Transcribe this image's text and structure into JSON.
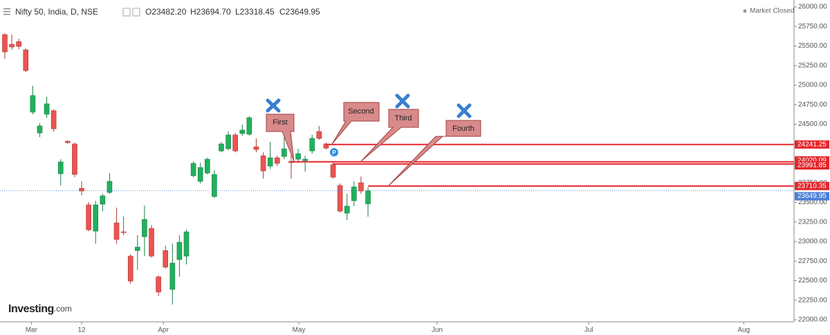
{
  "header": {
    "title": "Nifty 50, India, D, NSE",
    "ohlc": [
      "O23482.20",
      "H23694.70",
      "L23318.45",
      "C23649.95"
    ],
    "status": "Market Closed",
    "logo": "Investing",
    "logo_suffix": ".com"
  },
  "chart_data": {
    "type": "candlestick",
    "open": [
      25646,
      25522,
      25557,
      25451,
      24655,
      24389,
      24628,
      24673,
      23867,
      24283,
      24248,
      23681,
      23469,
      23133,
      23478,
      23628,
      23239,
      23124,
      22814,
      22885,
      23062,
      23168,
      22549,
      22885,
      22389,
      22770,
      22814,
      23841,
      23770,
      23876,
      23575,
      24159,
      24186,
      24363,
      24381,
      24372,
      24212,
      24097,
      23965,
      24071,
      24088,
      24026,
      24053,
      24035,
      24159,
      24407,
      24248,
      23982,
      23717,
      23363,
      23522,
      23752,
      23482.2
    ],
    "high": [
      25664,
      25646,
      25593,
      25469,
      24991,
      24513,
      24850,
      24690,
      24053,
      24292,
      24265,
      23770,
      23504,
      23522,
      23611,
      23876,
      23434,
      23319,
      22840,
      23080,
      23460,
      23212,
      22566,
      22947,
      22973,
      23080,
      23150,
      24026,
      24009,
      24071,
      23911,
      24274,
      24407,
      24389,
      24496,
      24602,
      24318,
      24141,
      24274,
      24097,
      24336,
      24363,
      24186,
      24097,
      24363,
      24478,
      24265,
      24009,
      23743,
      23611,
      23770,
      23832,
      23694.7
    ],
    "low": [
      25336,
      25451,
      25460,
      25168,
      24628,
      24336,
      24584,
      24407,
      23717,
      24248,
      23823,
      23593,
      23133,
      22973,
      23390,
      23611,
      22973,
      23080,
      22460,
      22637,
      22814,
      22796,
      22301,
      22655,
      22195,
      22549,
      22708,
      23823,
      23743,
      23858,
      23557,
      24141,
      24168,
      24141,
      24354,
      24354,
      24141,
      23806,
      23929,
      23965,
      24053,
      23806,
      24009,
      23894,
      24124,
      24301,
      24177,
      23806,
      23372,
      23274,
      23452,
      23611,
      23318.45
    ],
    "close": [
      25425,
      25487,
      25496,
      25186,
      24867,
      24478,
      24761,
      24442,
      24018,
      24265,
      23858,
      23646,
      23150,
      23469,
      23584,
      23770,
      23027,
      23115,
      22495,
      22929,
      23283,
      22814,
      22354,
      22673,
      22725,
      22991,
      23124,
      24000,
      23947,
      24053,
      23858,
      24248,
      24363,
      24159,
      24425,
      24584,
      24177,
      23903,
      24071,
      24000,
      24186,
      24009,
      24124,
      24053,
      24319,
      24319,
      24195,
      23823,
      23389,
      23452,
      23699,
      23646,
      23649.95
    ],
    "up_color": "#21b15e",
    "down_color": "#ec5350",
    "level_color": "#e3262c",
    "last_color": "#4a7fd8",
    "levels": [
      24241.25,
      24020.09,
      23991.85,
      23710.35
    ],
    "annotations": [
      "First",
      "Second",
      "Third",
      "Fourth"
    ],
    "ylim": [
      22000,
      26000
    ],
    "yticks": [
      {
        "value": 22000,
        "label": "22000.00"
      },
      {
        "value": 22250,
        "label": "22250.00"
      },
      {
        "value": 22500,
        "label": "22500.00"
      },
      {
        "value": 22750,
        "label": "22750.00"
      },
      {
        "value": 23000,
        "label": "23000.00"
      },
      {
        "value": 23250,
        "label": "23250.00"
      },
      {
        "value": 23500,
        "label": "23500.00"
      },
      {
        "value": 23750,
        "label": "23750.00"
      },
      {
        "value": 24000,
        "label": "24000.00"
      },
      {
        "value": 24250,
        "label": "24250.00"
      },
      {
        "value": 24500,
        "label": "24500.00"
      },
      {
        "value": 24750,
        "label": "24750.00"
      },
      {
        "value": 25000,
        "label": "25000.00"
      },
      {
        "value": 25250,
        "label": "25250.00"
      },
      {
        "value": 25500,
        "label": "25500.00"
      },
      {
        "value": 25750,
        "label": "25750.00"
      },
      {
        "value": 26000,
        "label": "26000.00"
      }
    ],
    "xlim": [
      -0.69,
      113
    ],
    "xticks": [
      {
        "value": 3.8,
        "label": "Mar"
      },
      {
        "value": 11,
        "label": "12"
      },
      {
        "value": 22.7,
        "label": "Apr"
      },
      {
        "value": 42.1,
        "label": "May"
      },
      {
        "value": 61.9,
        "label": "Jun"
      },
      {
        "value": 83.6,
        "label": "Jul"
      },
      {
        "value": 105.8,
        "label": "Aug"
      }
    ]
  }
}
